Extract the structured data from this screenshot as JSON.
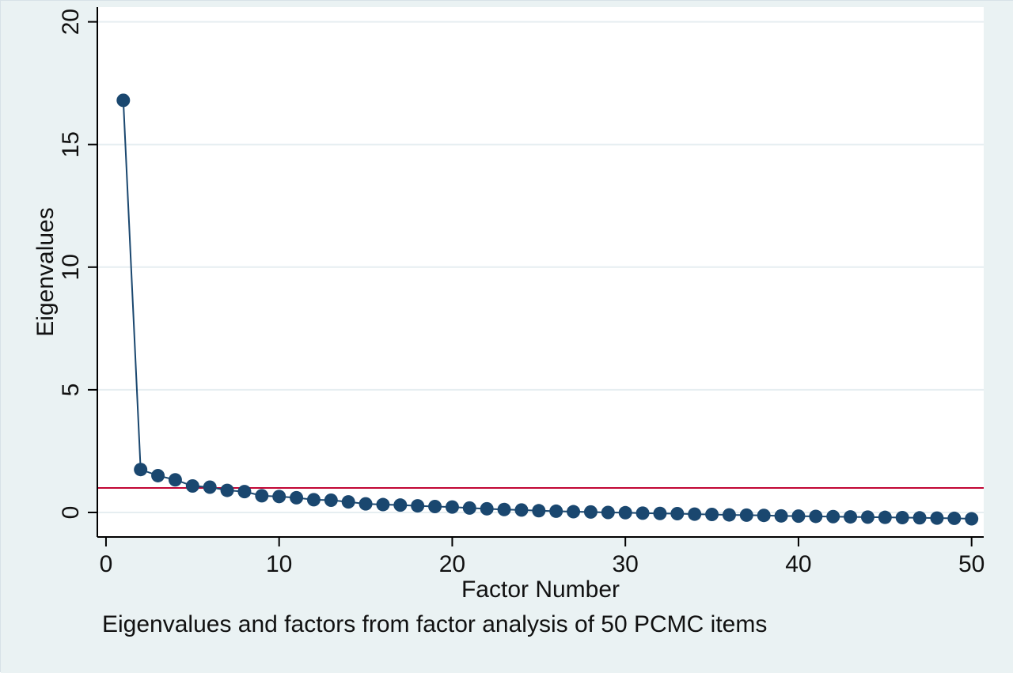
{
  "colors": {
    "outer_background": "#eaf2f3",
    "plot_background": "#ffffff",
    "grid": "#e6eef1",
    "series": "#1a476f",
    "reference_line": "#c10534",
    "axis": "#000000"
  },
  "chart_data": {
    "type": "line",
    "xlabel": "Factor Number",
    "ylabel": "Eigenvalues",
    "note": "Eigenvalues and factors from factor analysis of 50 PCMC items",
    "xlim": [
      -0.5,
      50.7
    ],
    "ylim": [
      -1.0,
      20.6
    ],
    "x_ticks": [
      0,
      10,
      20,
      30,
      40,
      50
    ],
    "y_ticks": [
      0,
      5,
      10,
      15,
      20
    ],
    "grid": "horizontal",
    "markers": true,
    "reference_line_y": 1.0,
    "series": [
      {
        "x": [
          1,
          2,
          3,
          4,
          5,
          6,
          7,
          8,
          9,
          10,
          11,
          12,
          13,
          14,
          15,
          16,
          17,
          18,
          19,
          20,
          21,
          22,
          23,
          24,
          25,
          26,
          27,
          28,
          29,
          30,
          31,
          32,
          33,
          34,
          35,
          36,
          37,
          38,
          39,
          40,
          41,
          42,
          43,
          44,
          45,
          46,
          47,
          48,
          49,
          50
        ],
        "values": [
          16.8,
          1.75,
          1.5,
          1.33,
          1.08,
          1.03,
          0.9,
          0.85,
          0.68,
          0.65,
          0.6,
          0.52,
          0.5,
          0.43,
          0.35,
          0.32,
          0.3,
          0.27,
          0.24,
          0.22,
          0.18,
          0.15,
          0.12,
          0.1,
          0.07,
          0.05,
          0.03,
          0.02,
          0.0,
          -0.01,
          -0.03,
          -0.04,
          -0.05,
          -0.07,
          -0.08,
          -0.1,
          -0.11,
          -0.12,
          -0.14,
          -0.15,
          -0.16,
          -0.17,
          -0.18,
          -0.19,
          -0.2,
          -0.21,
          -0.22,
          -0.23,
          -0.24,
          -0.26
        ]
      }
    ]
  }
}
